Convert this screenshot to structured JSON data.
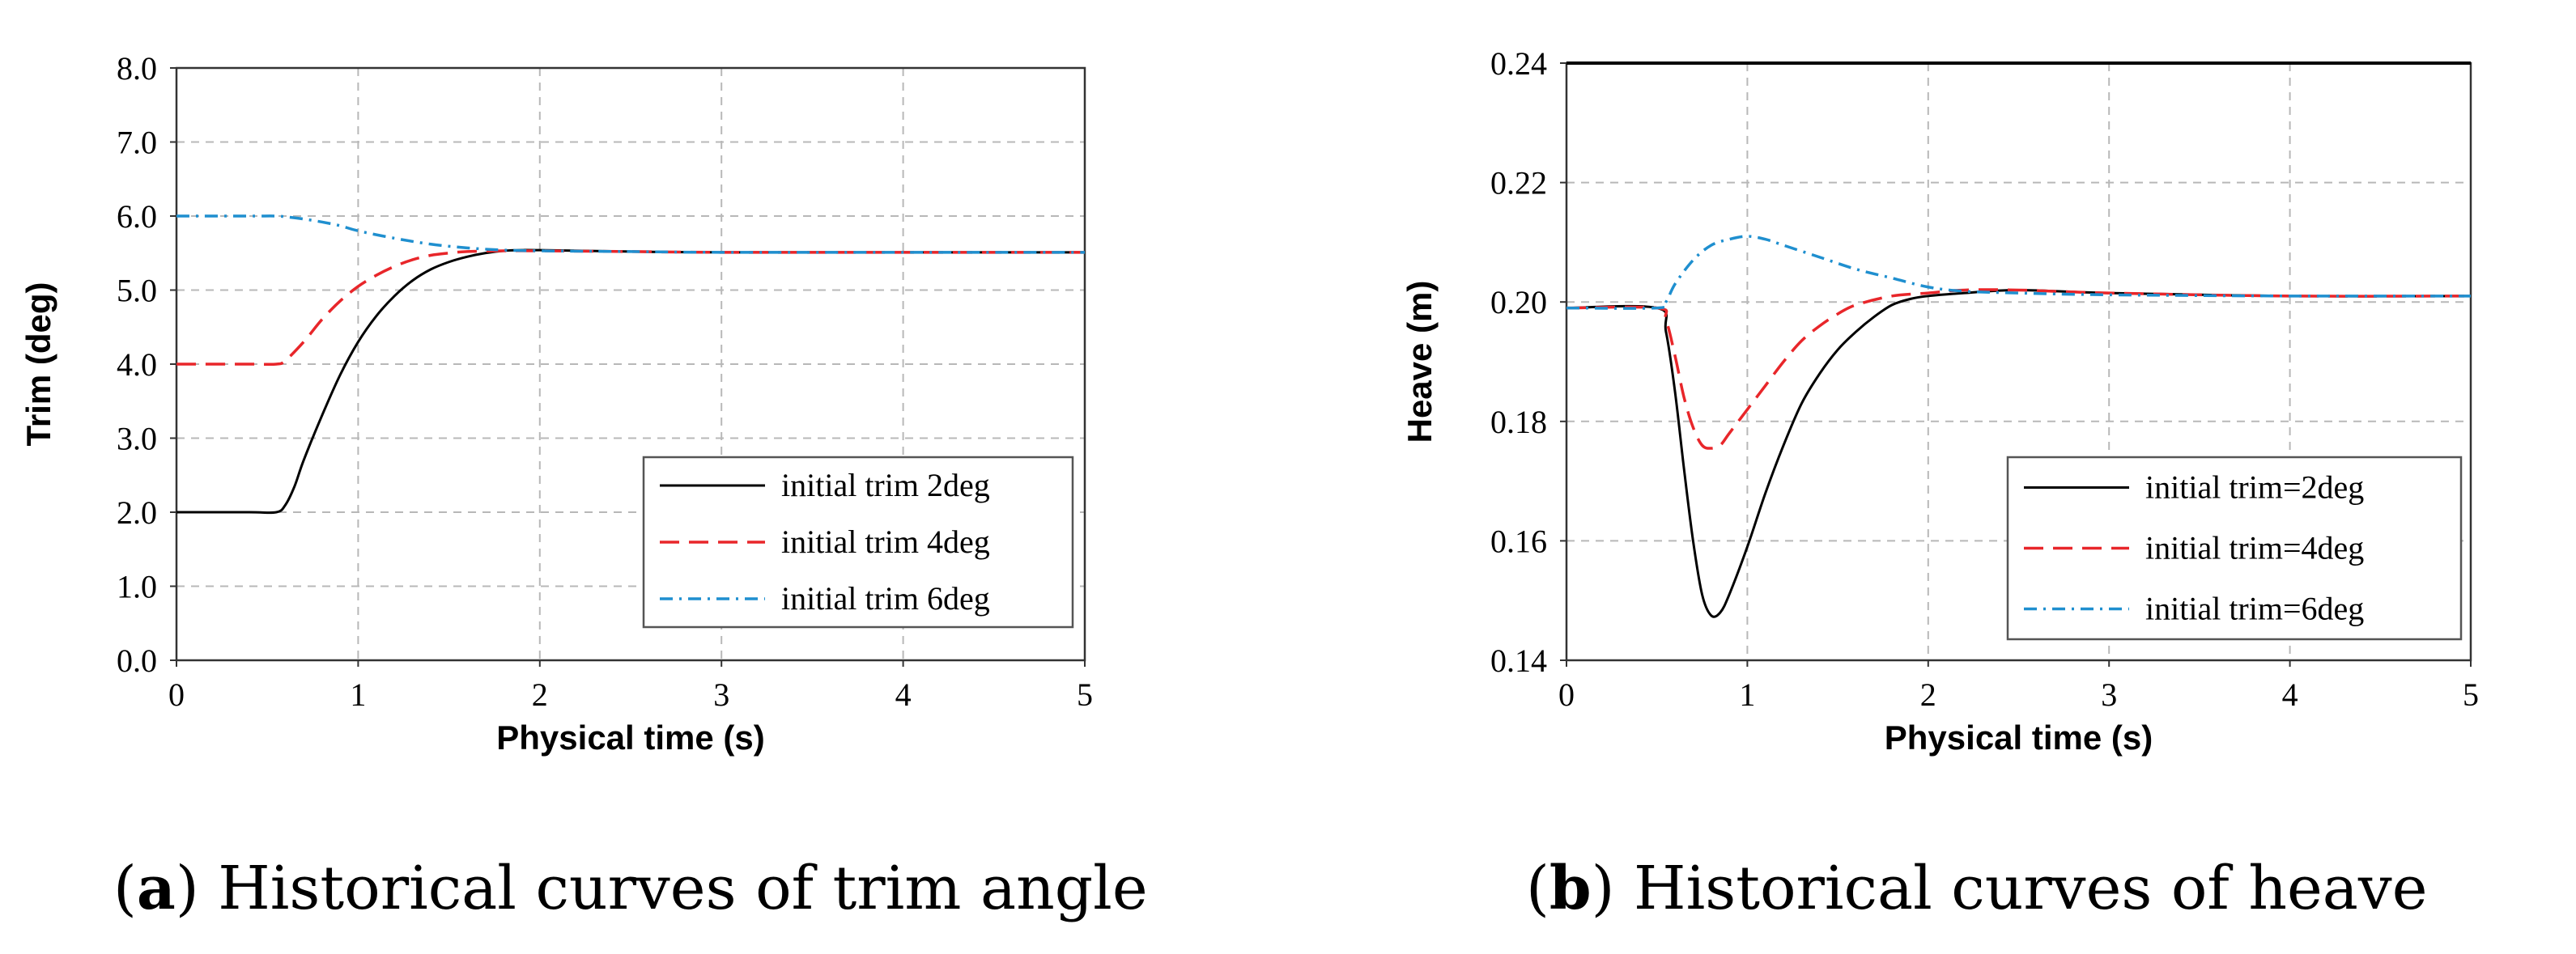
{
  "chart_data": [
    {
      "type": "line",
      "xlabel": "Physical time (s)",
      "ylabel": "Trim (deg)",
      "xlim": [
        0,
        5
      ],
      "ylim": [
        0,
        8
      ],
      "xticks": [
        "0",
        "1",
        "2",
        "3",
        "4",
        "5"
      ],
      "yticks": [
        "0.0",
        "1.0",
        "2.0",
        "3.0",
        "4.0",
        "5.0",
        "6.0",
        "7.0",
        "8.0"
      ],
      "grid": true,
      "legend": "bottom-right",
      "caption_label": "a",
      "caption_text": "Historical curves of trim angle",
      "series": [
        {
          "name": "initial trim 2deg",
          "color": "#000000",
          "style": "solid",
          "x": [
            0,
            0.4,
            0.55,
            0.6,
            0.65,
            0.7,
            0.8,
            0.9,
            1.0,
            1.1,
            1.2,
            1.3,
            1.4,
            1.5,
            1.6,
            1.7,
            1.8,
            1.9,
            2.0,
            2.5,
            3.0,
            4.0,
            5.0
          ],
          "y": [
            2.0,
            2.0,
            2.0,
            2.1,
            2.35,
            2.7,
            3.3,
            3.85,
            4.3,
            4.65,
            4.92,
            5.13,
            5.28,
            5.38,
            5.45,
            5.5,
            5.53,
            5.54,
            5.54,
            5.52,
            5.51,
            5.51,
            5.51
          ]
        },
        {
          "name": "initial trim 4deg",
          "color": "#e8262a",
          "style": "dashed",
          "x": [
            0,
            0.4,
            0.55,
            0.6,
            0.7,
            0.8,
            0.9,
            1.0,
            1.1,
            1.2,
            1.3,
            1.4,
            1.5,
            1.6,
            1.8,
            2.0,
            2.5,
            3.0,
            4.0,
            5.0
          ],
          "y": [
            4.0,
            4.0,
            4.0,
            4.05,
            4.3,
            4.6,
            4.85,
            5.05,
            5.2,
            5.32,
            5.41,
            5.47,
            5.5,
            5.52,
            5.53,
            5.53,
            5.52,
            5.51,
            5.51,
            5.51
          ]
        },
        {
          "name": "initial trim 6deg",
          "color": "#1f8fcf",
          "style": "dashdot",
          "x": [
            0,
            0.4,
            0.55,
            0.6,
            0.7,
            0.8,
            0.9,
            1.0,
            1.2,
            1.4,
            1.6,
            1.8,
            2.0,
            2.5,
            3.0,
            4.0,
            5.0
          ],
          "y": [
            6.0,
            6.0,
            6.0,
            5.99,
            5.96,
            5.92,
            5.87,
            5.8,
            5.7,
            5.62,
            5.57,
            5.54,
            5.53,
            5.52,
            5.51,
            5.51,
            5.51
          ]
        }
      ]
    },
    {
      "type": "line",
      "xlabel": "Physical time (s)",
      "ylabel": "Heave (m)",
      "xlim": [
        0,
        5
      ],
      "ylim": [
        0.14,
        0.24
      ],
      "xticks": [
        "0",
        "1",
        "2",
        "3",
        "4",
        "5"
      ],
      "yticks": [
        "0.14",
        "0.16",
        "0.18",
        "0.20",
        "0.22",
        "0.24"
      ],
      "grid": true,
      "legend": "bottom-right",
      "caption_label": "b",
      "caption_text": "Historical curves of heave",
      "series": [
        {
          "name": "initial trim=2deg",
          "color": "#000000",
          "style": "solid",
          "x": [
            0,
            0.5,
            0.55,
            0.6,
            0.65,
            0.7,
            0.75,
            0.8,
            0.85,
            0.9,
            1.0,
            1.1,
            1.2,
            1.3,
            1.4,
            1.5,
            1.6,
            1.7,
            1.8,
            1.9,
            2.0,
            2.2,
            2.5,
            3.0,
            4.0,
            5.0
          ],
          "y": [
            0.199,
            0.199,
            0.195,
            0.185,
            0.172,
            0.16,
            0.151,
            0.1475,
            0.148,
            0.151,
            0.159,
            0.168,
            0.176,
            0.183,
            0.188,
            0.192,
            0.195,
            0.1975,
            0.1995,
            0.2005,
            0.201,
            0.2015,
            0.202,
            0.2015,
            0.201,
            0.201
          ]
        },
        {
          "name": "initial trim=4deg",
          "color": "#e8262a",
          "style": "dashed",
          "x": [
            0,
            0.5,
            0.55,
            0.6,
            0.65,
            0.7,
            0.75,
            0.8,
            0.85,
            0.9,
            1.0,
            1.1,
            1.2,
            1.3,
            1.4,
            1.5,
            1.6,
            1.8,
            2.0,
            2.2,
            2.5,
            3.0,
            4.0,
            5.0
          ],
          "y": [
            0.199,
            0.199,
            0.197,
            0.191,
            0.184,
            0.179,
            0.176,
            0.1755,
            0.176,
            0.178,
            0.182,
            0.186,
            0.19,
            0.1935,
            0.196,
            0.198,
            0.1995,
            0.201,
            0.2015,
            0.202,
            0.202,
            0.2015,
            0.201,
            0.201
          ]
        },
        {
          "name": "initial trim=6deg",
          "color": "#1f8fcf",
          "style": "dashdot",
          "x": [
            0,
            0.5,
            0.55,
            0.6,
            0.7,
            0.8,
            0.9,
            1.0,
            1.1,
            1.2,
            1.4,
            1.6,
            1.8,
            2.0,
            2.2,
            2.5,
            3.0,
            4.0,
            5.0
          ],
          "y": [
            0.199,
            0.199,
            0.2,
            0.203,
            0.207,
            0.2095,
            0.2105,
            0.211,
            0.2105,
            0.2095,
            0.2075,
            0.2055,
            0.204,
            0.2025,
            0.2018,
            0.2015,
            0.2012,
            0.201,
            0.201
          ]
        }
      ]
    }
  ]
}
